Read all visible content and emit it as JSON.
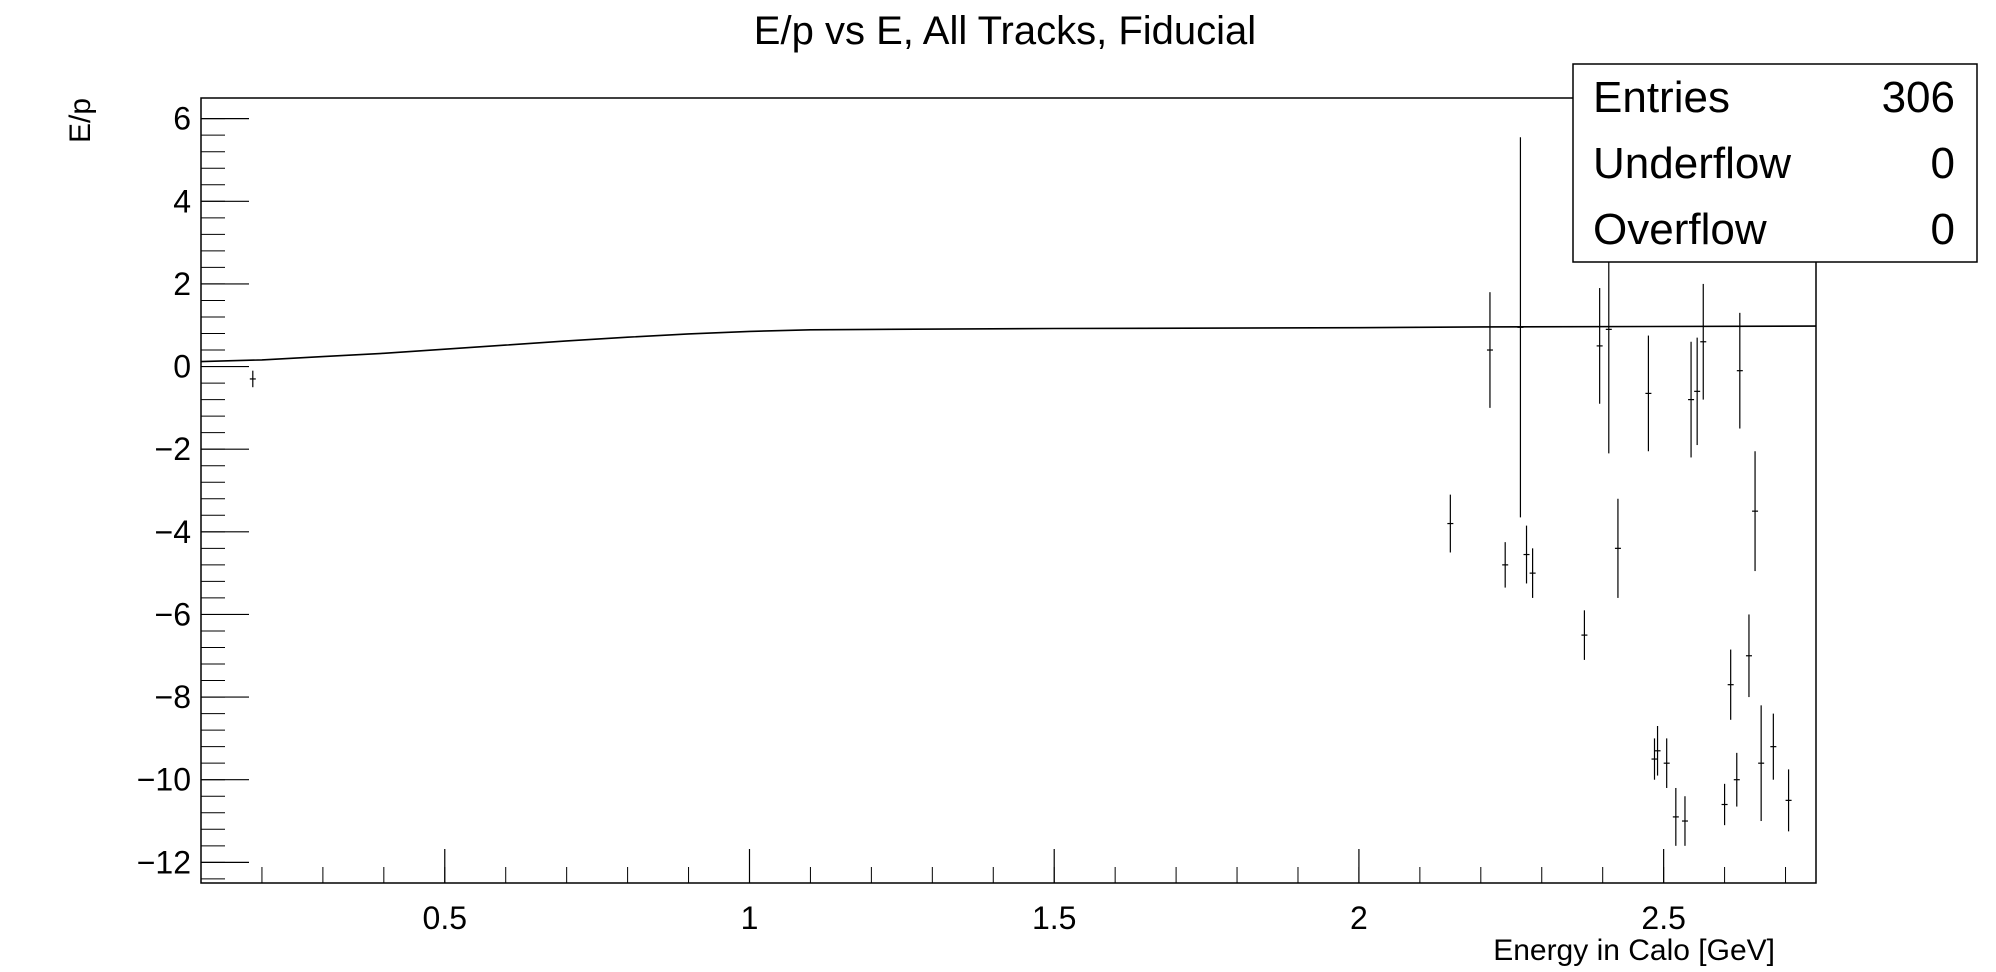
{
  "chart_data": {
    "type": "scatter",
    "title": "E/p vs E, All Tracks, Fiducial",
    "xlabel": "Energy in Calo [GeV]",
    "ylabel": "E/p",
    "xlim": [
      0.1,
      2.75
    ],
    "ylim": [
      -12.5,
      6.5
    ],
    "x_ticks": [
      0.5,
      1,
      1.5,
      2,
      2.5
    ],
    "x_tick_labels": [
      "0.5",
      "1",
      "1.5",
      "2",
      "2.5"
    ],
    "y_ticks": [
      6,
      4,
      2,
      0,
      -2,
      -4,
      -6,
      -8,
      -10,
      -12
    ],
    "y_tick_labels": [
      "6",
      "4",
      "2",
      "0",
      "−2",
      "−4",
      "−6",
      "−8",
      "−10",
      "−12"
    ],
    "grid": false,
    "legend": "none",
    "stats_box": {
      "placement": "top-right",
      "rows": [
        {
          "label": "Entries",
          "value": "306"
        },
        {
          "label": "Underflow",
          "value": "0"
        },
        {
          "label": "Overflow",
          "value": "0"
        }
      ]
    },
    "profile_curve": [
      {
        "x": 0.1,
        "y": 0.12
      },
      {
        "x": 0.2,
        "y": 0.16
      },
      {
        "x": 0.3,
        "y": 0.24
      },
      {
        "x": 0.4,
        "y": 0.32
      },
      {
        "x": 0.5,
        "y": 0.42
      },
      {
        "x": 0.6,
        "y": 0.52
      },
      {
        "x": 0.7,
        "y": 0.62
      },
      {
        "x": 0.8,
        "y": 0.71
      },
      {
        "x": 0.9,
        "y": 0.79
      },
      {
        "x": 1.0,
        "y": 0.85
      },
      {
        "x": 1.1,
        "y": 0.89
      },
      {
        "x": 1.2,
        "y": 0.9
      },
      {
        "x": 1.5,
        "y": 0.92
      },
      {
        "x": 2.0,
        "y": 0.94
      },
      {
        "x": 2.2,
        "y": 0.96
      },
      {
        "x": 2.75,
        "y": 0.98
      }
    ],
    "points": [
      {
        "x": 0.185,
        "y": -0.3,
        "err": 0.2
      },
      {
        "x": 2.15,
        "y": -3.8,
        "err": 0.7
      },
      {
        "x": 2.215,
        "y": 0.4,
        "err": 1.4
      },
      {
        "x": 2.24,
        "y": -4.8,
        "err": 0.55
      },
      {
        "x": 2.265,
        "y": 0.95,
        "err": 4.6
      },
      {
        "x": 2.275,
        "y": -4.55,
        "err": 0.7
      },
      {
        "x": 2.285,
        "y": -5.0,
        "err": 0.6
      },
      {
        "x": 2.37,
        "y": -6.5,
        "err": 0.6
      },
      {
        "x": 2.395,
        "y": 0.5,
        "err": 1.4
      },
      {
        "x": 2.41,
        "y": 0.9,
        "err": 3.0
      },
      {
        "x": 2.425,
        "y": -4.4,
        "err": 1.2
      },
      {
        "x": 2.475,
        "y": -0.65,
        "err": 1.4
      },
      {
        "x": 2.485,
        "y": -9.5,
        "err": 0.5
      },
      {
        "x": 2.49,
        "y": -9.3,
        "err": 0.6
      },
      {
        "x": 2.505,
        "y": -9.6,
        "err": 0.6
      },
      {
        "x": 2.52,
        "y": -10.9,
        "err": 0.7
      },
      {
        "x": 2.535,
        "y": -11.0,
        "err": 0.6
      },
      {
        "x": 2.545,
        "y": -0.8,
        "err": 1.4
      },
      {
        "x": 2.555,
        "y": -0.6,
        "err": 1.3
      },
      {
        "x": 2.565,
        "y": 0.6,
        "err": 1.4
      },
      {
        "x": 2.6,
        "y": -10.6,
        "err": 0.5
      },
      {
        "x": 2.61,
        "y": -7.7,
        "err": 0.85
      },
      {
        "x": 2.62,
        "y": -10.0,
        "err": 0.65
      },
      {
        "x": 2.625,
        "y": -0.1,
        "err": 1.4
      },
      {
        "x": 2.64,
        "y": -7.0,
        "err": 1.0
      },
      {
        "x": 2.65,
        "y": -3.5,
        "err": 1.45
      },
      {
        "x": 2.66,
        "y": -9.6,
        "err": 1.4
      },
      {
        "x": 2.68,
        "y": -9.2,
        "err": 0.8
      },
      {
        "x": 2.705,
        "y": -10.5,
        "err": 0.75
      }
    ]
  }
}
